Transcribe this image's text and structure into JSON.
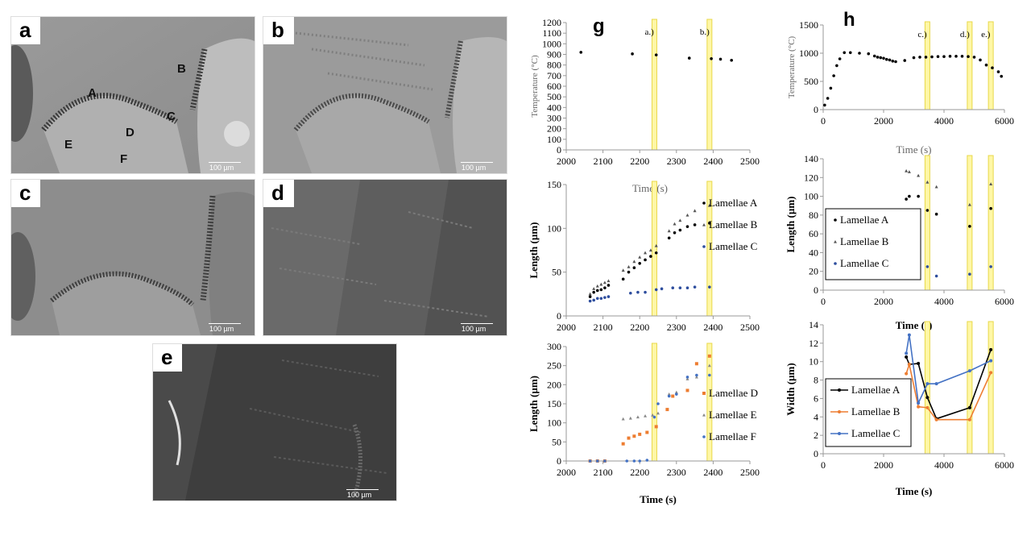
{
  "micrographs": [
    {
      "letter": "a",
      "scale": "100 µm",
      "labels": [
        "A",
        "B",
        "C",
        "D",
        "E",
        "F"
      ]
    },
    {
      "letter": "b",
      "scale": "100 µm"
    },
    {
      "letter": "c",
      "scale": "100 µm"
    },
    {
      "letter": "d",
      "scale": "100 µm"
    },
    {
      "letter": "e",
      "scale": "100 µm"
    }
  ],
  "chart_data": [
    {
      "panel": "g",
      "type": "scatter",
      "ylabel": "Temperature (°C)",
      "xlabel": "Time (s)",
      "xlim": [
        2000,
        2500
      ],
      "ylim": [
        0,
        1200
      ],
      "xticks": [
        2000,
        2100,
        2200,
        2300,
        2400,
        2500
      ],
      "yticks": [
        0,
        100,
        200,
        300,
        400,
        500,
        600,
        700,
        800,
        900,
        1000,
        1100,
        1200
      ],
      "markers": [
        {
          "label": "a.)",
          "x": 2240
        },
        {
          "label": "b.)",
          "x": 2390
        }
      ],
      "series": [
        {
          "name": "",
          "color": "#000000",
          "points": [
            [
              2040,
              920
            ],
            [
              2180,
              905
            ],
            [
              2245,
              895
            ],
            [
              2335,
              865
            ],
            [
              2395,
              860
            ],
            [
              2420,
              855
            ],
            [
              2450,
              845
            ]
          ]
        }
      ]
    },
    {
      "panel": "g",
      "type": "scatter",
      "ylabel": "Length (µm)",
      "xlabel": "Time (s)",
      "xlim": [
        2000,
        2500
      ],
      "ylim": [
        0,
        150
      ],
      "xticks": [
        2000,
        2100,
        2200,
        2300,
        2400,
        2500
      ],
      "yticks": [
        0,
        50,
        100,
        150
      ],
      "markers": [
        {
          "x": 2240
        },
        {
          "x": 2390
        }
      ],
      "legend": "right",
      "series": [
        {
          "name": "Lamellae A",
          "color": "#000000",
          "marker": "dot",
          "points": [
            [
              2065,
              22
            ],
            [
              2075,
              27
            ],
            [
              2085,
              29
            ],
            [
              2095,
              30
            ],
            [
              2105,
              32
            ],
            [
              2115,
              35
            ],
            [
              2155,
              42
            ],
            [
              2170,
              50
            ],
            [
              2185,
              55
            ],
            [
              2200,
              60
            ],
            [
              2215,
              64
            ],
            [
              2230,
              68
            ],
            [
              2245,
              72
            ],
            [
              2280,
              89
            ],
            [
              2295,
              95
            ],
            [
              2310,
              98
            ],
            [
              2330,
              102
            ],
            [
              2350,
              104
            ],
            [
              2390,
              106
            ]
          ]
        },
        {
          "name": "Lamellae B",
          "color": "#555555",
          "marker": "triangle",
          "points": [
            [
              2065,
              25
            ],
            [
              2075,
              31
            ],
            [
              2085,
              34
            ],
            [
              2095,
              36
            ],
            [
              2105,
              38
            ],
            [
              2115,
              40
            ],
            [
              2155,
              52
            ],
            [
              2170,
              56
            ],
            [
              2185,
              62
            ],
            [
              2200,
              67
            ],
            [
              2215,
              72
            ],
            [
              2230,
              75
            ],
            [
              2245,
              80
            ],
            [
              2280,
              97
            ],
            [
              2295,
              105
            ],
            [
              2310,
              109
            ],
            [
              2330,
              115
            ],
            [
              2350,
              120
            ],
            [
              2390,
              126
            ]
          ]
        },
        {
          "name": "Lamellae C",
          "color": "#2e4e9e",
          "marker": "dot",
          "points": [
            [
              2065,
              17
            ],
            [
              2075,
              18
            ],
            [
              2085,
              20
            ],
            [
              2095,
              20
            ],
            [
              2105,
              21
            ],
            [
              2115,
              22
            ],
            [
              2175,
              26
            ],
            [
              2195,
              27
            ],
            [
              2215,
              27
            ],
            [
              2245,
              30
            ],
            [
              2260,
              31
            ],
            [
              2290,
              32
            ],
            [
              2310,
              32
            ],
            [
              2330,
              32
            ],
            [
              2350,
              33
            ],
            [
              2390,
              33
            ]
          ]
        }
      ]
    },
    {
      "panel": "g",
      "type": "scatter",
      "ylabel": "Length (µm)",
      "xlabel": "Time (s)",
      "xlim": [
        2000,
        2500
      ],
      "ylim": [
        0,
        300
      ],
      "xticks": [
        2000,
        2100,
        2200,
        2300,
        2400,
        2500
      ],
      "yticks": [
        0,
        50,
        100,
        150,
        200,
        250,
        300
      ],
      "markers": [
        {
          "x": 2240
        },
        {
          "x": 2390
        }
      ],
      "legend": "right",
      "series": [
        {
          "name": "Lamellae D",
          "color": "#ed7d31",
          "marker": "square",
          "points": [
            [
              2065,
              0
            ],
            [
              2085,
              0
            ],
            [
              2105,
              0
            ],
            [
              2155,
              45
            ],
            [
              2170,
              60
            ],
            [
              2185,
              65
            ],
            [
              2200,
              70
            ],
            [
              2220,
              75
            ],
            [
              2245,
              90
            ],
            [
              2275,
              135
            ],
            [
              2290,
              170
            ],
            [
              2330,
              185
            ],
            [
              2355,
              255
            ],
            [
              2390,
              275
            ]
          ]
        },
        {
          "name": "Lamellae E",
          "color": "#888888",
          "marker": "triangle",
          "points": [
            [
              2065,
              0
            ],
            [
              2085,
              0
            ],
            [
              2105,
              0
            ],
            [
              2155,
              110
            ],
            [
              2175,
              112
            ],
            [
              2195,
              115
            ],
            [
              2215,
              118
            ],
            [
              2235,
              120
            ],
            [
              2250,
              125
            ],
            [
              2280,
              175
            ],
            [
              2300,
              180
            ],
            [
              2330,
              215
            ],
            [
              2355,
              220
            ],
            [
              2390,
              250
            ]
          ]
        },
        {
          "name": "Lamellae F",
          "color": "#4472c4",
          "marker": "dot",
          "points": [
            [
              2065,
              0
            ],
            [
              2085,
              0
            ],
            [
              2105,
              0
            ],
            [
              2165,
              0
            ],
            [
              2185,
              0
            ],
            [
              2200,
              0
            ],
            [
              2220,
              2
            ],
            [
              2240,
              115
            ],
            [
              2250,
              150
            ],
            [
              2280,
              170
            ],
            [
              2300,
              175
            ],
            [
              2330,
              220
            ],
            [
              2355,
              225
            ],
            [
              2390,
              225
            ]
          ]
        }
      ]
    },
    {
      "panel": "h",
      "type": "scatter",
      "ylabel": "Temperature (°C)",
      "xlabel": "Time (s)",
      "xlim": [
        0,
        6000
      ],
      "ylim": [
        0,
        1500
      ],
      "xticks": [
        0,
        2000,
        4000,
        6000
      ],
      "yticks": [
        0,
        500,
        1000,
        1500
      ],
      "markers": [
        {
          "label": "c.)",
          "x": 3450
        },
        {
          "label": "d.)",
          "x": 4850
        },
        {
          "label": "e.)",
          "x": 5550
        }
      ],
      "series": [
        {
          "name": "",
          "color": "#000000",
          "points": [
            [
              50,
              80
            ],
            [
              150,
              200
            ],
            [
              250,
              380
            ],
            [
              350,
              600
            ],
            [
              450,
              780
            ],
            [
              550,
              900
            ],
            [
              700,
              1010
            ],
            [
              900,
              1010
            ],
            [
              1200,
              1000
            ],
            [
              1500,
              990
            ],
            [
              1700,
              950
            ],
            [
              1800,
              930
            ],
            [
              1900,
              920
            ],
            [
              2000,
              910
            ],
            [
              2100,
              890
            ],
            [
              2200,
              880
            ],
            [
              2300,
              860
            ],
            [
              2400,
              850
            ],
            [
              2700,
              870
            ],
            [
              3000,
              920
            ],
            [
              3200,
              930
            ],
            [
              3400,
              930
            ],
            [
              3600,
              935
            ],
            [
              3800,
              940
            ],
            [
              4000,
              940
            ],
            [
              4200,
              945
            ],
            [
              4400,
              945
            ],
            [
              4600,
              945
            ],
            [
              4800,
              940
            ],
            [
              5000,
              930
            ],
            [
              5200,
              880
            ],
            [
              5400,
              790
            ],
            [
              5600,
              740
            ],
            [
              5800,
              670
            ],
            [
              5900,
              590
            ]
          ]
        }
      ]
    },
    {
      "panel": "h",
      "type": "scatter",
      "ylabel": "Length (µm)",
      "xlabel": "Time (s)",
      "xlim": [
        0,
        6000
      ],
      "ylim": [
        0,
        140
      ],
      "xticks": [
        0,
        2000,
        4000,
        6000
      ],
      "yticks": [
        0,
        20,
        40,
        60,
        80,
        100,
        120,
        140
      ],
      "markers": [
        {
          "x": 3450
        },
        {
          "x": 4850
        },
        {
          "x": 5550
        }
      ],
      "legend": "left",
      "series": [
        {
          "name": "Lamellae A",
          "color": "#000000",
          "marker": "dot",
          "points": [
            [
              2750,
              97
            ],
            [
              2850,
              100
            ],
            [
              3150,
              100
            ],
            [
              3450,
              85
            ],
            [
              3750,
              81
            ],
            [
              4850,
              68
            ],
            [
              5550,
              87
            ]
          ]
        },
        {
          "name": "Lamellae B",
          "color": "#555555",
          "marker": "triangle",
          "points": [
            [
              2750,
              127
            ],
            [
              2850,
              126
            ],
            [
              3150,
              122
            ],
            [
              3450,
              115
            ],
            [
              3750,
              110
            ],
            [
              4850,
              91
            ],
            [
              5550,
              113
            ]
          ]
        },
        {
          "name": "Lamellae C",
          "color": "#2e4e9e",
          "marker": "dot",
          "points": [
            [
              2750,
              32
            ],
            [
              2850,
              31
            ],
            [
              3150,
              31
            ],
            [
              3450,
              25
            ],
            [
              3750,
              15
            ],
            [
              4850,
              17
            ],
            [
              5550,
              25
            ]
          ]
        }
      ]
    },
    {
      "panel": "h",
      "type": "line",
      "ylabel": "Width (µm)",
      "xlabel": "Time (s)",
      "xlim": [
        0,
        6000
      ],
      "ylim": [
        0,
        14
      ],
      "xticks": [
        0,
        2000,
        4000,
        6000
      ],
      "yticks": [
        0,
        2,
        4,
        6,
        8,
        10,
        12,
        14
      ],
      "markers": [
        {
          "x": 3450
        },
        {
          "x": 4850
        },
        {
          "x": 5550
        }
      ],
      "legend": "left",
      "series": [
        {
          "name": "Lamellae A",
          "color": "#000000",
          "points": [
            [
              2750,
              10.5
            ],
            [
              2850,
              9.7
            ],
            [
              3150,
              9.8
            ],
            [
              3450,
              6.1
            ],
            [
              3750,
              3.8
            ],
            [
              4850,
              5.0
            ],
            [
              5550,
              11.3
            ]
          ]
        },
        {
          "name": "Lamellae B",
          "color": "#ed7d31",
          "points": [
            [
              2750,
              8.7
            ],
            [
              2850,
              9.7
            ],
            [
              3150,
              5.1
            ],
            [
              3450,
              5.0
            ],
            [
              3750,
              3.7
            ],
            [
              4850,
              3.7
            ],
            [
              5550,
              8.8
            ]
          ]
        },
        {
          "name": "Lamellae C",
          "color": "#4472c4",
          "points": [
            [
              2750,
              10.9
            ],
            [
              2850,
              12.9
            ],
            [
              3150,
              5.5
            ],
            [
              3450,
              7.6
            ],
            [
              3750,
              7.6
            ],
            [
              4850,
              9.0
            ],
            [
              5550,
              10.1
            ]
          ]
        }
      ]
    }
  ],
  "panel_letters": {
    "g": "g",
    "h": "h"
  }
}
